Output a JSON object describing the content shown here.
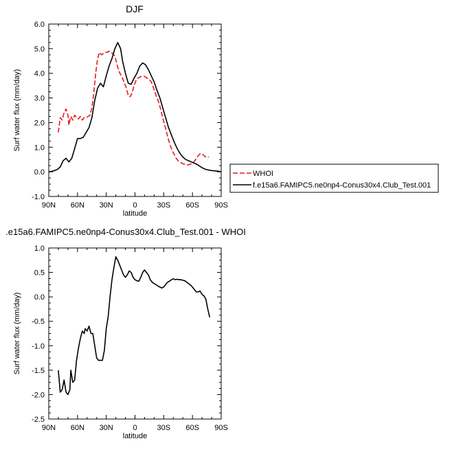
{
  "chart_data": [
    {
      "type": "line",
      "title": "DJF",
      "xlabel": "latitude",
      "ylabel": "Surf water flux (mm/day)",
      "xlim": [
        90,
        -90
      ],
      "ylim": [
        -1.0,
        6.0
      ],
      "xticks": [
        {
          "v": 90,
          "label": "90N"
        },
        {
          "v": 60,
          "label": "60N"
        },
        {
          "v": 30,
          "label": "30N"
        },
        {
          "v": 0,
          "label": "0"
        },
        {
          "v": -30,
          "label": "30S"
        },
        {
          "v": -60,
          "label": "60S"
        },
        {
          "v": -90,
          "label": "90S"
        }
      ],
      "yticks": [
        {
          "v": -1.0,
          "label": "-1.0"
        },
        {
          "v": 0.0,
          "label": "0.0"
        },
        {
          "v": 1.0,
          "label": "1.0"
        },
        {
          "v": 2.0,
          "label": "2.0"
        },
        {
          "v": 3.0,
          "label": "3.0"
        },
        {
          "v": 4.0,
          "label": "4.0"
        },
        {
          "v": 5.0,
          "label": "5.0"
        },
        {
          "v": 6.0,
          "label": "6.0"
        }
      ],
      "legend": {
        "placement": "right, outside plot"
      },
      "series": [
        {
          "name": "WHOI",
          "color": "#e41a1c",
          "dash": true,
          "x": [
            80,
            78,
            76,
            74,
            72,
            70,
            69,
            67,
            65,
            63,
            61,
            59,
            57,
            55,
            53,
            51,
            49,
            47,
            45,
            43,
            41,
            39,
            37,
            35,
            33,
            31,
            29,
            27,
            25,
            23,
            21,
            19,
            17,
            15,
            13,
            11,
            9,
            7,
            5,
            3,
            1,
            -1,
            -3,
            -5,
            -7,
            -9,
            -11,
            -13,
            -15,
            -17,
            -19,
            -21,
            -23,
            -25,
            -27,
            -29,
            -31,
            -33,
            -35,
            -37,
            -39,
            -41,
            -43,
            -45,
            -47,
            -49,
            -51,
            -53,
            -55,
            -57,
            -59,
            -61,
            -63,
            -65,
            -67,
            -69,
            -71,
            -73,
            -75,
            -77
          ],
          "y": [
            1.6,
            2.2,
            2.1,
            2.4,
            2.55,
            2.3,
            1.9,
            2.25,
            2.1,
            2.3,
            2.2,
            2.15,
            2.25,
            2.1,
            2.2,
            2.2,
            2.25,
            2.3,
            2.6,
            3.2,
            4.0,
            4.6,
            4.85,
            4.75,
            4.8,
            4.85,
            4.85,
            4.9,
            4.85,
            4.8,
            4.7,
            4.4,
            4.1,
            3.95,
            3.8,
            3.6,
            3.4,
            3.1,
            3.05,
            3.2,
            3.5,
            3.7,
            3.8,
            3.85,
            3.88,
            3.88,
            3.85,
            3.8,
            3.75,
            3.65,
            3.45,
            3.2,
            3.0,
            2.8,
            2.5,
            2.2,
            1.9,
            1.6,
            1.3,
            1.05,
            0.85,
            0.7,
            0.55,
            0.45,
            0.4,
            0.35,
            0.32,
            0.3,
            0.28,
            0.3,
            0.33,
            0.38,
            0.48,
            0.6,
            0.7,
            0.75,
            0.7,
            0.62,
            0.58,
            0.6
          ]
        },
        {
          "name": "f.e15a6.FAMIPC5.ne0np4-Conus30x4.Club_Test.001",
          "color": "#000000",
          "dash": false,
          "x": [
            90,
            87,
            84,
            81,
            78,
            75,
            72,
            69,
            66,
            63,
            60,
            57,
            54,
            51,
            48,
            45,
            42,
            39,
            36,
            33,
            30,
            27,
            24,
            21,
            18,
            15,
            13,
            10,
            7,
            4,
            1,
            -2,
            -5,
            -8,
            -11,
            -14,
            -17,
            -20,
            -23,
            -26,
            -29,
            -32,
            -35,
            -38,
            -41,
            -44,
            -47,
            -50,
            -53,
            -56,
            -59,
            -62,
            -65,
            -68,
            -71,
            -74,
            -77,
            -80,
            -83,
            -86,
            -90
          ],
          "y": [
            0.0,
            0.02,
            0.05,
            0.1,
            0.2,
            0.45,
            0.55,
            0.4,
            0.55,
            0.95,
            1.35,
            1.35,
            1.4,
            1.6,
            1.8,
            2.2,
            2.9,
            3.4,
            3.6,
            3.45,
            3.9,
            4.3,
            4.6,
            5.0,
            5.25,
            5.0,
            4.5,
            4.0,
            3.6,
            3.55,
            3.8,
            4.0,
            4.3,
            4.42,
            4.35,
            4.15,
            3.9,
            3.65,
            3.3,
            3.0,
            2.6,
            2.2,
            1.8,
            1.5,
            1.2,
            0.95,
            0.75,
            0.6,
            0.5,
            0.45,
            0.4,
            0.35,
            0.3,
            0.22,
            0.15,
            0.1,
            0.07,
            0.05,
            0.04,
            0.03,
            0.0
          ]
        }
      ]
    },
    {
      "type": "line",
      "title": ".e15a6.FAMIPC5.ne0np4-Conus30x4.Club_Test.001 - WHOI",
      "xlabel": "latitude",
      "ylabel": "Surf water flux (mm/day)",
      "xlim": [
        90,
        -90
      ],
      "ylim": [
        -2.5,
        1.0
      ],
      "xticks": [
        {
          "v": 90,
          "label": "90N"
        },
        {
          "v": 60,
          "label": "60N"
        },
        {
          "v": 30,
          "label": "30N"
        },
        {
          "v": 0,
          "label": "0"
        },
        {
          "v": -30,
          "label": "30S"
        },
        {
          "v": -60,
          "label": "60S"
        },
        {
          "v": -90,
          "label": "90S"
        }
      ],
      "yticks": [
        {
          "v": -2.5,
          "label": "-2.5"
        },
        {
          "v": -2.0,
          "label": "-2.0"
        },
        {
          "v": -1.5,
          "label": "-1.5"
        },
        {
          "v": -1.0,
          "label": "-1.0"
        },
        {
          "v": -0.5,
          "label": "-0.5"
        },
        {
          "v": 0.0,
          "label": "0.0"
        },
        {
          "v": 0.5,
          "label": "0.5"
        },
        {
          "v": 1.0,
          "label": "1.0"
        }
      ],
      "series": [
        {
          "color": "#000000",
          "dash": false,
          "x": [
            80,
            78,
            76,
            74,
            72,
            70,
            68,
            67,
            65,
            63,
            61,
            59,
            57,
            55,
            53,
            52,
            50,
            48,
            46,
            44,
            42,
            40,
            38,
            36,
            34,
            32,
            30,
            28,
            26,
            24,
            22,
            20,
            18,
            16,
            14,
            12,
            10,
            8,
            6,
            4,
            2,
            0,
            -2,
            -4,
            -6,
            -8,
            -10,
            -12,
            -14,
            -16,
            -18,
            -20,
            -22,
            -24,
            -26,
            -28,
            -30,
            -32,
            -34,
            -36,
            -38,
            -40,
            -42,
            -44,
            -46,
            -48,
            -50,
            -52,
            -54,
            -56,
            -58,
            -60,
            -62,
            -64,
            -66,
            -68,
            -70,
            -72,
            -74,
            -76,
            -78
          ],
          "y": [
            -1.5,
            -1.95,
            -1.9,
            -1.7,
            -1.95,
            -2.0,
            -1.9,
            -1.5,
            -1.75,
            -1.7,
            -1.3,
            -1.05,
            -0.85,
            -0.7,
            -0.75,
            -0.65,
            -0.7,
            -0.6,
            -0.75,
            -0.75,
            -1.0,
            -1.25,
            -1.3,
            -1.3,
            -1.3,
            -1.1,
            -0.65,
            -0.4,
            0.0,
            0.35,
            0.6,
            0.82,
            0.75,
            0.65,
            0.55,
            0.45,
            0.4,
            0.45,
            0.53,
            0.5,
            0.4,
            0.35,
            0.33,
            0.32,
            0.4,
            0.5,
            0.55,
            0.5,
            0.45,
            0.35,
            0.3,
            0.27,
            0.25,
            0.22,
            0.2,
            0.18,
            0.2,
            0.25,
            0.3,
            0.32,
            0.35,
            0.37,
            0.35,
            0.36,
            0.35,
            0.35,
            0.34,
            0.33,
            0.3,
            0.27,
            0.24,
            0.2,
            0.15,
            0.1,
            0.1,
            0.12,
            0.05,
            0.02,
            -0.05,
            -0.25,
            -0.42
          ]
        }
      ]
    }
  ]
}
